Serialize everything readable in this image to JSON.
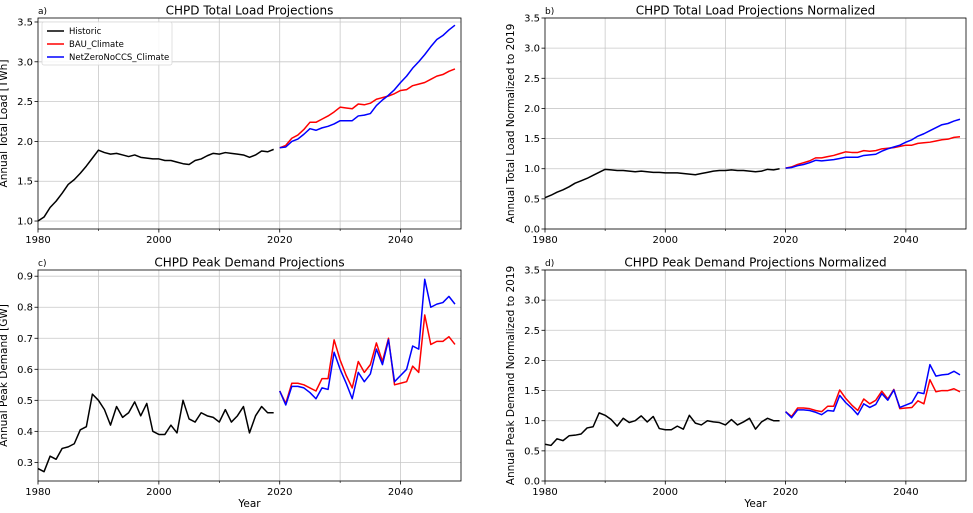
{
  "chart_data": [
    {
      "type": "line",
      "panel_letter": "a)",
      "title": "CHPD Total Load Projections",
      "xlabel": "",
      "ylabel": "Annual Total Load [TWh]",
      "xlim": [
        1980,
        2050
      ],
      "ylim": [
        0.9,
        3.55
      ],
      "xticks": [
        1980,
        2000,
        2020,
        2040
      ],
      "yticks": [
        1.0,
        1.5,
        2.0,
        2.5,
        3.0,
        3.5
      ],
      "ytick_labels": [
        "1.0",
        "1.5",
        "2.0",
        "2.5",
        "3.0",
        "3.5"
      ],
      "grid": true,
      "legend": "top-left",
      "series": [
        {
          "name": "Historic",
          "color": "#000000",
          "x": [
            1980,
            1981,
            1982,
            1983,
            1984,
            1985,
            1986,
            1987,
            1988,
            1989,
            1990,
            1991,
            1992,
            1993,
            1994,
            1995,
            1996,
            1997,
            1998,
            1999,
            2000,
            2001,
            2002,
            2003,
            2004,
            2005,
            2006,
            2007,
            2008,
            2009,
            2010,
            2011,
            2012,
            2013,
            2014,
            2015,
            2016,
            2017,
            2018,
            2019
          ],
          "y": [
            1.0,
            1.05,
            1.17,
            1.25,
            1.35,
            1.46,
            1.52,
            1.6,
            1.69,
            1.79,
            1.89,
            1.86,
            1.84,
            1.85,
            1.83,
            1.81,
            1.83,
            1.8,
            1.79,
            1.78,
            1.78,
            1.76,
            1.76,
            1.74,
            1.72,
            1.71,
            1.76,
            1.78,
            1.82,
            1.85,
            1.84,
            1.86,
            1.85,
            1.84,
            1.83,
            1.8,
            1.83,
            1.88,
            1.87,
            1.9
          ]
        },
        {
          "name": "BAU_Climate",
          "color": "#ff0000",
          "x": [
            2020,
            2021,
            2022,
            2023,
            2024,
            2025,
            2026,
            2027,
            2028,
            2029,
            2030,
            2031,
            2032,
            2033,
            2034,
            2035,
            2036,
            2037,
            2038,
            2039,
            2040,
            2041,
            2042,
            2043,
            2044,
            2045,
            2046,
            2047,
            2048,
            2049
          ],
          "y": [
            1.92,
            1.95,
            2.04,
            2.08,
            2.15,
            2.24,
            2.24,
            2.28,
            2.32,
            2.37,
            2.43,
            2.42,
            2.41,
            2.47,
            2.46,
            2.48,
            2.53,
            2.55,
            2.57,
            2.6,
            2.64,
            2.65,
            2.7,
            2.72,
            2.74,
            2.78,
            2.82,
            2.84,
            2.88,
            2.91
          ]
        },
        {
          "name": "NetZeroNoCCS_Climate",
          "color": "#0000ff",
          "x": [
            2020,
            2021,
            2022,
            2023,
            2024,
            2025,
            2026,
            2027,
            2028,
            2029,
            2030,
            2031,
            2032,
            2033,
            2034,
            2035,
            2036,
            2037,
            2038,
            2039,
            2040,
            2041,
            2042,
            2043,
            2044,
            2045,
            2046,
            2047,
            2048,
            2049
          ],
          "y": [
            1.92,
            1.93,
            2.0,
            2.03,
            2.09,
            2.16,
            2.14,
            2.17,
            2.19,
            2.22,
            2.26,
            2.26,
            2.26,
            2.32,
            2.33,
            2.35,
            2.45,
            2.52,
            2.58,
            2.65,
            2.74,
            2.82,
            2.92,
            3.0,
            3.09,
            3.19,
            3.28,
            3.33,
            3.4,
            3.46
          ]
        }
      ]
    },
    {
      "type": "line",
      "panel_letter": "b)",
      "title": "CHPD Total Load Projections Normalized",
      "xlabel": "",
      "ylabel": "Annual Total Load Normalized to 2019",
      "xlim": [
        1980,
        2050
      ],
      "ylim": [
        0,
        3.5
      ],
      "xticks": [
        1980,
        2000,
        2020,
        2040
      ],
      "yticks": [
        0,
        0.5,
        1.0,
        1.5,
        2.0,
        2.5,
        3.0,
        3.5
      ],
      "ytick_labels": [
        "0.0",
        "0.5",
        "1.0",
        "1.5",
        "2.0",
        "2.5",
        "3.0",
        "3.5"
      ],
      "grid": true,
      "series": [
        {
          "name": "",
          "color": "#000000",
          "x": [
            1980,
            1981,
            1982,
            1983,
            1984,
            1985,
            1986,
            1987,
            1988,
            1989,
            1990,
            1991,
            1992,
            1993,
            1994,
            1995,
            1996,
            1997,
            1998,
            1999,
            2000,
            2001,
            2002,
            2003,
            2004,
            2005,
            2006,
            2007,
            2008,
            2009,
            2010,
            2011,
            2012,
            2013,
            2014,
            2015,
            2016,
            2017,
            2018,
            2019
          ],
          "y": [
            0.52,
            0.56,
            0.61,
            0.65,
            0.7,
            0.76,
            0.8,
            0.84,
            0.89,
            0.94,
            0.99,
            0.98,
            0.97,
            0.97,
            0.96,
            0.95,
            0.96,
            0.95,
            0.94,
            0.94,
            0.93,
            0.93,
            0.93,
            0.92,
            0.91,
            0.9,
            0.92,
            0.94,
            0.96,
            0.97,
            0.97,
            0.98,
            0.97,
            0.97,
            0.96,
            0.95,
            0.96,
            0.99,
            0.98,
            1.0
          ]
        },
        {
          "name": "",
          "color": "#ff0000",
          "x": [
            2020,
            2021,
            2022,
            2023,
            2024,
            2025,
            2026,
            2027,
            2028,
            2029,
            2030,
            2031,
            2032,
            2033,
            2034,
            2035,
            2036,
            2037,
            2038,
            2039,
            2040,
            2041,
            2042,
            2043,
            2044,
            2045,
            2046,
            2047,
            2048,
            2049
          ],
          "y": [
            1.01,
            1.03,
            1.07,
            1.1,
            1.13,
            1.18,
            1.18,
            1.2,
            1.22,
            1.25,
            1.28,
            1.27,
            1.27,
            1.3,
            1.29,
            1.3,
            1.33,
            1.34,
            1.35,
            1.37,
            1.39,
            1.39,
            1.42,
            1.43,
            1.44,
            1.46,
            1.48,
            1.49,
            1.52,
            1.53
          ]
        },
        {
          "name": "",
          "color": "#0000ff",
          "x": [
            2020,
            2021,
            2022,
            2023,
            2024,
            2025,
            2026,
            2027,
            2028,
            2029,
            2030,
            2031,
            2032,
            2033,
            2034,
            2035,
            2036,
            2037,
            2038,
            2039,
            2040,
            2041,
            2042,
            2043,
            2044,
            2045,
            2046,
            2047,
            2048,
            2049
          ],
          "y": [
            1.01,
            1.02,
            1.05,
            1.07,
            1.1,
            1.14,
            1.13,
            1.14,
            1.15,
            1.17,
            1.19,
            1.19,
            1.19,
            1.22,
            1.23,
            1.24,
            1.29,
            1.33,
            1.36,
            1.39,
            1.44,
            1.48,
            1.54,
            1.58,
            1.63,
            1.68,
            1.73,
            1.75,
            1.79,
            1.82
          ]
        }
      ]
    },
    {
      "type": "line",
      "panel_letter": "c)",
      "title": "CHPD Peak Demand Projections",
      "xlabel": "Year",
      "ylabel": "Annual Peak Demand [GW]",
      "xlim": [
        1980,
        2050
      ],
      "ylim": [
        0.24,
        0.92
      ],
      "xticks": [
        1980,
        2000,
        2020,
        2040
      ],
      "yticks": [
        0.3,
        0.4,
        0.5,
        0.6,
        0.7,
        0.8,
        0.9
      ],
      "ytick_labels": [
        "0.3",
        "0.4",
        "0.5",
        "0.6",
        "0.7",
        "0.8",
        "0.9"
      ],
      "grid": true,
      "series": [
        {
          "name": "",
          "color": "#000000",
          "x": [
            1980,
            1981,
            1982,
            1983,
            1984,
            1985,
            1986,
            1987,
            1988,
            1989,
            1990,
            1991,
            1992,
            1993,
            1994,
            1995,
            1996,
            1997,
            1998,
            1999,
            2000,
            2001,
            2002,
            2003,
            2004,
            2005,
            2006,
            2007,
            2008,
            2009,
            2010,
            2011,
            2012,
            2013,
            2014,
            2015,
            2016,
            2017,
            2018,
            2019
          ],
          "y": [
            0.28,
            0.27,
            0.32,
            0.31,
            0.345,
            0.35,
            0.36,
            0.405,
            0.415,
            0.52,
            0.5,
            0.47,
            0.42,
            0.48,
            0.445,
            0.46,
            0.495,
            0.45,
            0.49,
            0.4,
            0.39,
            0.39,
            0.42,
            0.395,
            0.5,
            0.44,
            0.43,
            0.46,
            0.45,
            0.445,
            0.43,
            0.47,
            0.43,
            0.45,
            0.48,
            0.395,
            0.45,
            0.48,
            0.46,
            0.46
          ]
        },
        {
          "name": "",
          "color": "#ff0000",
          "x": [
            2020,
            2021,
            2022,
            2023,
            2024,
            2025,
            2026,
            2027,
            2028,
            2029,
            2030,
            2031,
            2032,
            2033,
            2034,
            2035,
            2036,
            2037,
            2038,
            2039,
            2040,
            2041,
            2042,
            2043,
            2044,
            2045,
            2046,
            2047,
            2048,
            2049
          ],
          "y": [
            0.53,
            0.49,
            0.555,
            0.555,
            0.55,
            0.54,
            0.53,
            0.57,
            0.57,
            0.695,
            0.63,
            0.58,
            0.54,
            0.625,
            0.59,
            0.615,
            0.685,
            0.625,
            0.7,
            0.55,
            0.555,
            0.56,
            0.61,
            0.59,
            0.775,
            0.68,
            0.69,
            0.69,
            0.705,
            0.68
          ]
        },
        {
          "name": "",
          "color": "#0000ff",
          "x": [
            2020,
            2021,
            2022,
            2023,
            2024,
            2025,
            2026,
            2027,
            2028,
            2029,
            2030,
            2031,
            2032,
            2033,
            2034,
            2035,
            2036,
            2037,
            2038,
            2039,
            2040,
            2041,
            2042,
            2043,
            2044,
            2045,
            2046,
            2047,
            2048,
            2049
          ],
          "y": [
            0.53,
            0.485,
            0.545,
            0.545,
            0.54,
            0.525,
            0.505,
            0.54,
            0.535,
            0.655,
            0.6,
            0.555,
            0.505,
            0.59,
            0.56,
            0.585,
            0.665,
            0.615,
            0.695,
            0.56,
            0.58,
            0.6,
            0.675,
            0.665,
            0.89,
            0.8,
            0.81,
            0.815,
            0.835,
            0.81
          ]
        }
      ]
    },
    {
      "type": "line",
      "panel_letter": "d)",
      "title": "CHPD Peak Demand Projections Normalized",
      "xlabel": "Year",
      "ylabel": "Annual Peak Demand Normalized to 2019",
      "xlim": [
        1980,
        2050
      ],
      "ylim": [
        0,
        3.5
      ],
      "xticks": [
        1980,
        2000,
        2020,
        2040
      ],
      "yticks": [
        0,
        0.5,
        1.0,
        1.5,
        2.0,
        2.5,
        3.0,
        3.5
      ],
      "ytick_labels": [
        "0.0",
        "0.5",
        "1.0",
        "1.5",
        "2.0",
        "2.5",
        "3.0",
        "3.5"
      ],
      "grid": true,
      "series": [
        {
          "name": "",
          "color": "#000000",
          "x": [
            1980,
            1981,
            1982,
            1983,
            1984,
            1985,
            1986,
            1987,
            1988,
            1989,
            1990,
            1991,
            1992,
            1993,
            1994,
            1995,
            1996,
            1997,
            1998,
            1999,
            2000,
            2001,
            2002,
            2003,
            2004,
            2005,
            2006,
            2007,
            2008,
            2009,
            2010,
            2011,
            2012,
            2013,
            2014,
            2015,
            2016,
            2017,
            2018,
            2019
          ],
          "y": [
            0.61,
            0.59,
            0.7,
            0.67,
            0.75,
            0.76,
            0.78,
            0.88,
            0.9,
            1.13,
            1.09,
            1.02,
            0.91,
            1.04,
            0.97,
            1.0,
            1.08,
            0.98,
            1.07,
            0.87,
            0.85,
            0.85,
            0.91,
            0.86,
            1.09,
            0.96,
            0.93,
            1.0,
            0.98,
            0.97,
            0.93,
            1.02,
            0.93,
            0.98,
            1.04,
            0.86,
            0.98,
            1.04,
            1.0,
            1.0
          ]
        },
        {
          "name": "",
          "color": "#ff0000",
          "x": [
            2020,
            2021,
            2022,
            2023,
            2024,
            2025,
            2026,
            2027,
            2028,
            2029,
            2030,
            2031,
            2032,
            2033,
            2034,
            2035,
            2036,
            2037,
            2038,
            2039,
            2040,
            2041,
            2042,
            2043,
            2044,
            2045,
            2046,
            2047,
            2048,
            2049
          ],
          "y": [
            1.15,
            1.07,
            1.21,
            1.21,
            1.2,
            1.17,
            1.15,
            1.24,
            1.24,
            1.51,
            1.37,
            1.26,
            1.17,
            1.36,
            1.28,
            1.34,
            1.49,
            1.36,
            1.52,
            1.2,
            1.21,
            1.22,
            1.33,
            1.28,
            1.68,
            1.48,
            1.5,
            1.5,
            1.53,
            1.48
          ]
        },
        {
          "name": "",
          "color": "#0000ff",
          "x": [
            2020,
            2021,
            2022,
            2023,
            2024,
            2025,
            2026,
            2027,
            2028,
            2029,
            2030,
            2031,
            2032,
            2033,
            2034,
            2035,
            2036,
            2037,
            2038,
            2039,
            2040,
            2041,
            2042,
            2043,
            2044,
            2045,
            2046,
            2047,
            2048,
            2049
          ],
          "y": [
            1.15,
            1.05,
            1.18,
            1.18,
            1.17,
            1.14,
            1.1,
            1.17,
            1.16,
            1.42,
            1.3,
            1.21,
            1.1,
            1.28,
            1.22,
            1.27,
            1.45,
            1.34,
            1.51,
            1.22,
            1.26,
            1.3,
            1.47,
            1.45,
            1.93,
            1.74,
            1.76,
            1.77,
            1.82,
            1.76
          ]
        }
      ]
    }
  ]
}
